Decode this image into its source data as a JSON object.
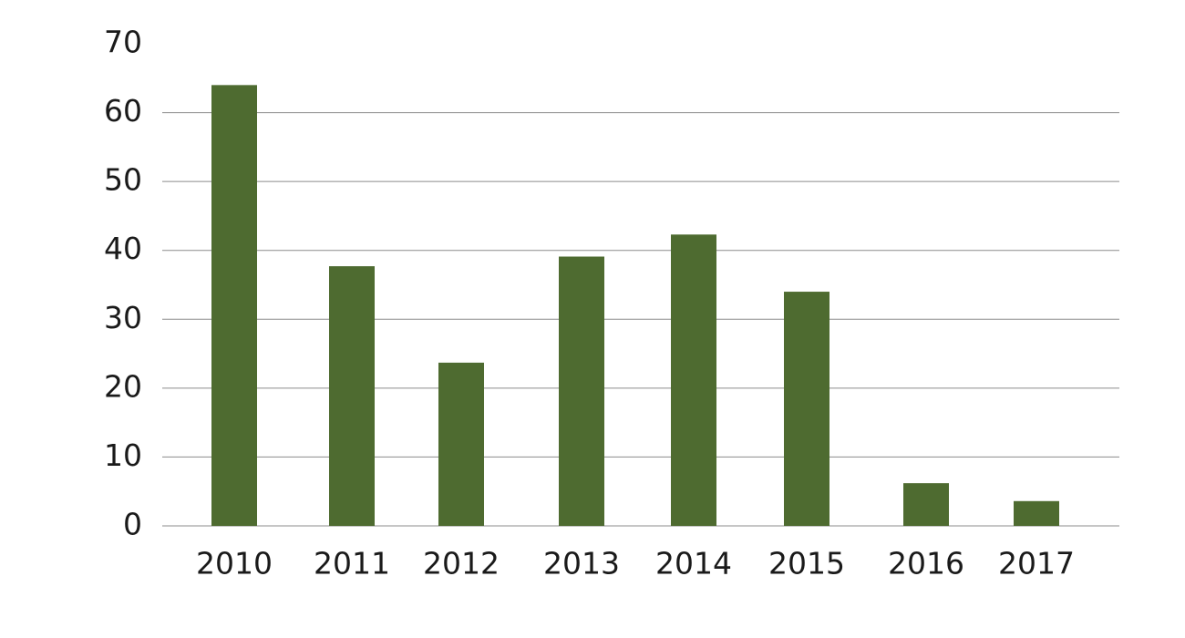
{
  "chart_data": {
    "type": "bar",
    "categories": [
      "2010",
      "2011",
      "2012",
      "2013",
      "2014",
      "2015",
      "2016",
      "2017"
    ],
    "values": [
      64.0,
      37.7,
      23.7,
      39.1,
      42.3,
      34.0,
      6.2,
      3.6
    ],
    "color": "#4e6b30",
    "ylim": [
      0,
      70
    ],
    "yticks": [
      0,
      10,
      20,
      30,
      40,
      50,
      60,
      70
    ],
    "grid": true
  }
}
